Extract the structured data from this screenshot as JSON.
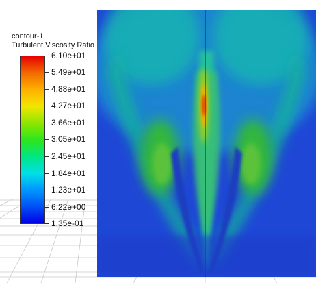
{
  "legend": {
    "title": "contour-1",
    "quantity": "Turbulent Viscosity Ratio",
    "ticks": [
      "6.10e+01",
      "5.49e+01",
      "4.88e+01",
      "4.27e+01",
      "3.66e+01",
      "3.05e+01",
      "2.45e+01",
      "1.84e+01",
      "1.23e+01",
      "6.22e+00",
      "1.35e-01"
    ]
  },
  "colors": {
    "low": "#0000e6",
    "mid": "#2ee61a",
    "high": "#e60000",
    "background_field": "#1a3fd0"
  }
}
